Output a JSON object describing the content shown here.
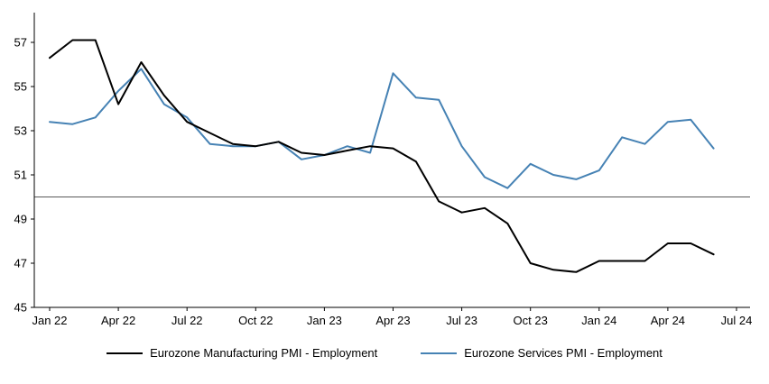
{
  "chart_data": {
    "type": "line",
    "title": "",
    "xlabel": "",
    "ylabel": "",
    "grid": "off",
    "legend_position": "bottom",
    "ylim": [
      45,
      58.5
    ],
    "y_ticks": [
      45,
      47,
      49,
      51,
      53,
      55,
      57
    ],
    "reference_line_y": 50,
    "axis_color": "#000000",
    "reference_line_color": "#595959",
    "x_tick_labels": [
      "Jan 22",
      "Apr 22",
      "Jul 22",
      "Oct 22",
      "Jan 23",
      "Apr 23",
      "Jul 23",
      "Oct 23",
      "Jan 24",
      "Apr 24",
      "Jul 24"
    ],
    "x_tick_month_index": [
      0,
      3,
      6,
      9,
      12,
      15,
      18,
      21,
      24,
      27,
      30
    ],
    "months": [
      "Jan 22",
      "Feb 22",
      "Mar 22",
      "Apr 22",
      "May 22",
      "Jun 22",
      "Jul 22",
      "Aug 22",
      "Sep 22",
      "Oct 22",
      "Nov 22",
      "Dec 22",
      "Jan 23",
      "Feb 23",
      "Mar 23",
      "Apr 23",
      "May 23",
      "Jun 23",
      "Jul 23",
      "Aug 23",
      "Sep 23",
      "Oct 23",
      "Nov 23",
      "Dec 23",
      "Jan 24",
      "Feb 24",
      "Mar 24",
      "Apr 24",
      "May 24",
      "Jun 24"
    ],
    "series": [
      {
        "id": "manufacturing-pmi-line",
        "name": "Eurozone Manufacturing PMI - Employment",
        "color": "#000000",
        "values": [
          56.3,
          57.1,
          57.1,
          54.2,
          56.1,
          54.6,
          53.4,
          52.9,
          52.4,
          52.3,
          52.5,
          52.0,
          51.9,
          52.1,
          52.3,
          52.2,
          51.6,
          49.8,
          49.3,
          49.5,
          48.8,
          47.0,
          46.7,
          46.6,
          47.1,
          47.1,
          47.1,
          47.9,
          47.9,
          47.4
        ]
      },
      {
        "id": "services-pmi-line",
        "name": "Eurozone Services PMI - Employment",
        "color": "#4682b4",
        "values": [
          53.4,
          53.3,
          53.6,
          54.8,
          55.8,
          54.2,
          53.6,
          52.4,
          52.3,
          52.3,
          52.5,
          51.7,
          51.9,
          52.3,
          52.0,
          55.6,
          54.5,
          54.4,
          52.3,
          50.9,
          50.4,
          51.5,
          51.0,
          50.8,
          51.2,
          52.7,
          52.4,
          53.4,
          53.5,
          52.2
        ]
      }
    ]
  }
}
